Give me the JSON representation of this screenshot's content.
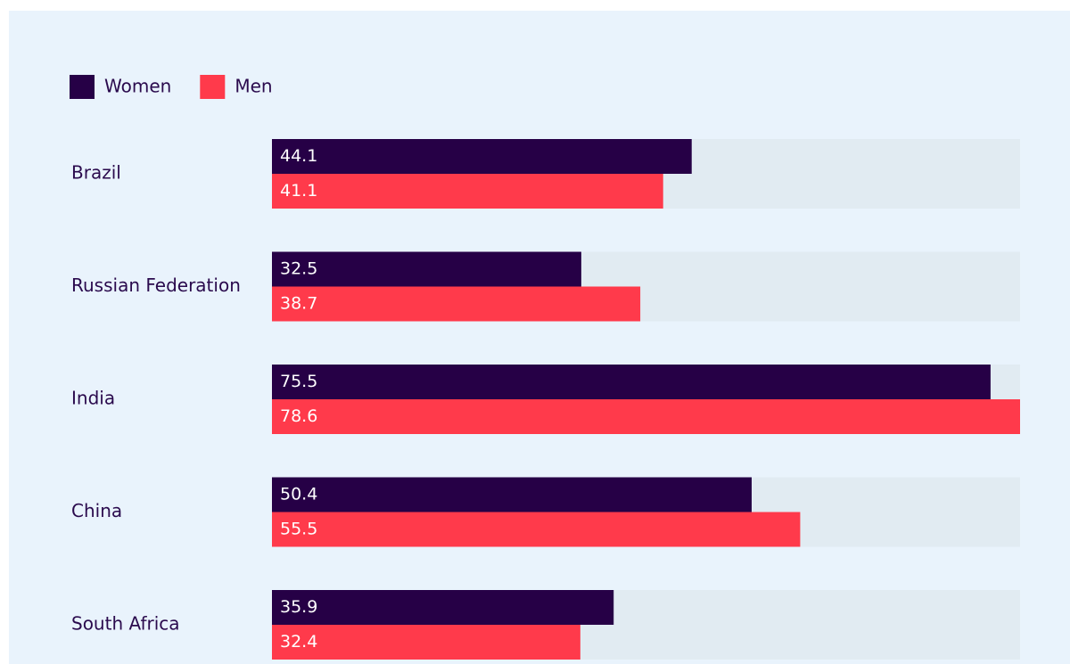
{
  "chart_data": {
    "type": "bar",
    "orientation": "horizontal",
    "categories": [
      "Brazil",
      "Russian Federation",
      "India",
      "China",
      "South Africa"
    ],
    "series": [
      {
        "name": "Women",
        "color": "#260046",
        "values": [
          44.1,
          32.5,
          75.5,
          50.4,
          35.9
        ]
      },
      {
        "name": "Men",
        "color": "#ff3a4b",
        "values": [
          41.1,
          38.7,
          78.6,
          55.5,
          32.4
        ]
      }
    ],
    "xlim": [
      0,
      78.6
    ],
    "legend": "top-left",
    "value_labels_shown": true
  }
}
